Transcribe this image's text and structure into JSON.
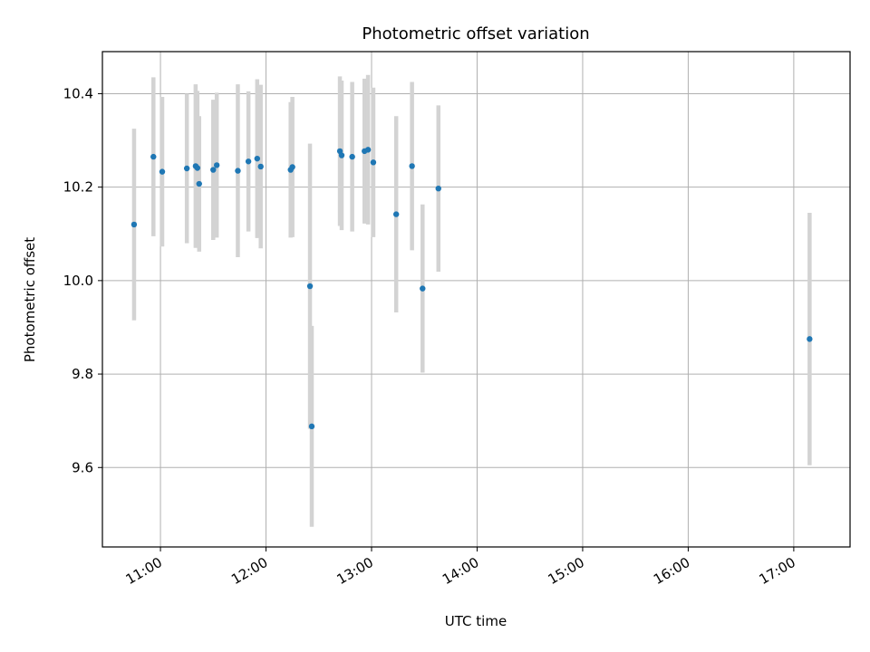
{
  "chart_data": {
    "type": "scatter",
    "title": "Photometric offset variation",
    "xlabel": "UTC time",
    "ylabel": "Photometric offset",
    "x_ticks": [
      "11:00",
      "12:00",
      "13:00",
      "14:00",
      "15:00",
      "16:00",
      "17:00"
    ],
    "y_ticks": [
      "9.6",
      "9.8",
      "10.0",
      "10.2",
      "10.4"
    ],
    "xlim": [
      "10:27",
      "17:32"
    ],
    "ylim": [
      9.43,
      10.49
    ],
    "grid": true,
    "point_color": "#1f77b4",
    "errorbar_color": "#d3d3d3",
    "series": [
      {
        "points": [
          {
            "x": "10:45",
            "y": 10.12,
            "err": 0.205
          },
          {
            "x": "10:56",
            "y": 10.265,
            "err": 0.17
          },
          {
            "x": "11:01",
            "y": 10.233,
            "err": 0.16
          },
          {
            "x": "11:15",
            "y": 10.24,
            "err": 0.16
          },
          {
            "x": "11:20",
            "y": 10.245,
            "err": 0.175
          },
          {
            "x": "11:21",
            "y": 10.241,
            "err": 0.165
          },
          {
            "x": "11:22",
            "y": 10.207,
            "err": 0.145
          },
          {
            "x": "11:30",
            "y": 10.237,
            "err": 0.15
          },
          {
            "x": "11:32",
            "y": 10.247,
            "err": 0.155
          },
          {
            "x": "11:44",
            "y": 10.235,
            "err": 0.185
          },
          {
            "x": "11:50",
            "y": 10.255,
            "err": 0.15
          },
          {
            "x": "11:55",
            "y": 10.261,
            "err": 0.17
          },
          {
            "x": "11:57",
            "y": 10.244,
            "err": 0.175
          },
          {
            "x": "12:14",
            "y": 10.237,
            "err": 0.145
          },
          {
            "x": "12:15",
            "y": 10.243,
            "err": 0.15
          },
          {
            "x": "12:25",
            "y": 9.988,
            "err": 0.305
          },
          {
            "x": "12:26",
            "y": 9.688,
            "err": 0.215
          },
          {
            "x": "12:42",
            "y": 10.277,
            "err": 0.16
          },
          {
            "x": "12:43",
            "y": 10.268,
            "err": 0.16
          },
          {
            "x": "12:49",
            "y": 10.265,
            "err": 0.16
          },
          {
            "x": "12:56",
            "y": 10.277,
            "err": 0.155
          },
          {
            "x": "12:58",
            "y": 10.28,
            "err": 0.16
          },
          {
            "x": "13:01",
            "y": 10.253,
            "err": 0.16
          },
          {
            "x": "13:14",
            "y": 10.142,
            "err": 0.21
          },
          {
            "x": "13:23",
            "y": 10.245,
            "err": 0.18
          },
          {
            "x": "13:29",
            "y": 9.983,
            "err": 0.18
          },
          {
            "x": "13:38",
            "y": 10.197,
            "err": 0.178
          },
          {
            "x": "17:09",
            "y": 9.875,
            "err": 0.27
          }
        ]
      }
    ]
  }
}
